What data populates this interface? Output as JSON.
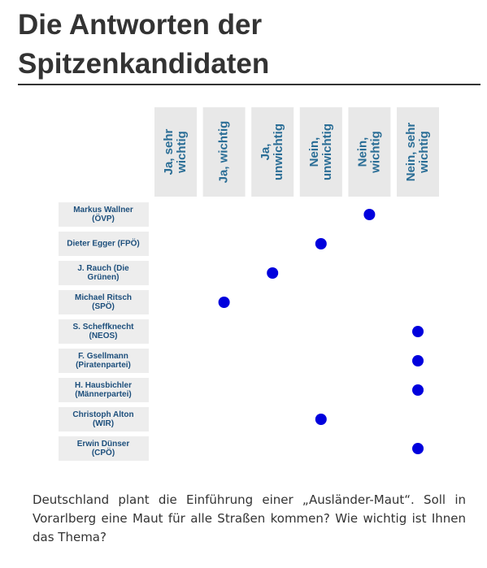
{
  "header": {
    "title": [
      "Die Antworten der",
      "Spitzenkandidaten"
    ]
  },
  "columns": [
    [
      "Ja, sehr",
      "wichtig"
    ],
    [
      "Ja, wichtig"
    ],
    [
      "Ja,",
      "unwichtig"
    ],
    [
      "Nein,",
      "unwichtig"
    ],
    [
      "Nein,",
      "wichtig"
    ],
    [
      "Nein, sehr",
      "wichtig"
    ]
  ],
  "rows": [
    {
      "label": [
        "Markus Wallner",
        "(ÖVP)"
      ],
      "answer": 5
    },
    {
      "label": [
        "Dieter Egger (FPÖ)"
      ],
      "answer": 4
    },
    {
      "label": [
        "J. Rauch (Die",
        "Grünen)"
      ],
      "answer": 3
    },
    {
      "label": [
        "Michael Ritsch",
        "(SPÖ)"
      ],
      "answer": 2
    },
    {
      "label": [
        "S. Scheffknecht",
        "(NEOS)"
      ],
      "answer": 6
    },
    {
      "label": [
        "F. Gsellmann",
        "(Piratenpartei)"
      ],
      "answer": 6
    },
    {
      "label": [
        "H. Hausbichler",
        "(Männerpartei)"
      ],
      "answer": 6
    },
    {
      "label": [
        "Christoph Alton",
        "(WIR)"
      ],
      "answer": 4
    },
    {
      "label": [
        "Erwin Dünser",
        "(CPÖ)"
      ],
      "answer": 6
    }
  ],
  "question": "Deutschland plant die Einführung einer „Ausländer-Maut“. Soll in Vorarlberg eine Maut für alle Straßen kommen? Wie wichtig ist Ihnen das Thema?"
}
